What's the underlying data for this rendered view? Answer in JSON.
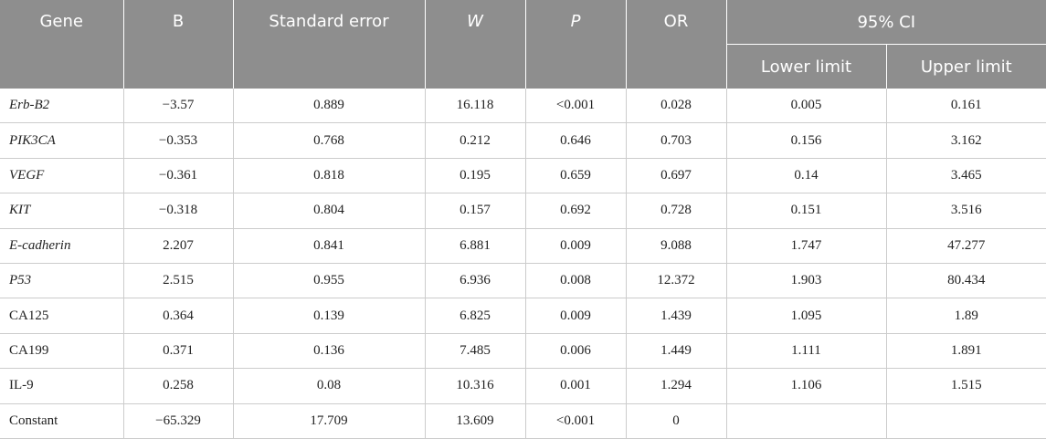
{
  "table": {
    "header": {
      "columns": [
        "Gene",
        "B",
        "Standard error",
        "W",
        "P",
        "OR"
      ],
      "group": "95% CI",
      "subcolumns": [
        "Lower limit",
        "Upper limit"
      ]
    },
    "rows": [
      {
        "gene": "Erb-B2",
        "italic": true,
        "values": [
          "−3.57",
          "0.889",
          "16.118",
          "<0.001",
          "0.028",
          "0.005",
          "0.161"
        ]
      },
      {
        "gene": "PIK3CA",
        "italic": true,
        "values": [
          "−0.353",
          "0.768",
          "0.212",
          "0.646",
          "0.703",
          "0.156",
          "3.162"
        ]
      },
      {
        "gene": "VEGF",
        "italic": true,
        "values": [
          "−0.361",
          "0.818",
          "0.195",
          "0.659",
          "0.697",
          "0.14",
          "3.465"
        ]
      },
      {
        "gene": "KIT",
        "italic": true,
        "values": [
          "−0.318",
          "0.804",
          "0.157",
          "0.692",
          "0.728",
          "0.151",
          "3.516"
        ]
      },
      {
        "gene": "E-cadherin",
        "italic": true,
        "values": [
          "2.207",
          "0.841",
          "6.881",
          "0.009",
          "9.088",
          "1.747",
          "47.277"
        ]
      },
      {
        "gene": "P53",
        "italic": true,
        "values": [
          "2.515",
          "0.955",
          "6.936",
          "0.008",
          "12.372",
          "1.903",
          "80.434"
        ]
      },
      {
        "gene": "CA125",
        "italic": false,
        "values": [
          "0.364",
          "0.139",
          "6.825",
          "0.009",
          "1.439",
          "1.095",
          "1.89"
        ]
      },
      {
        "gene": "CA199",
        "italic": false,
        "values": [
          "0.371",
          "0.136",
          "7.485",
          "0.006",
          "1.449",
          "1.111",
          "1.891"
        ]
      },
      {
        "gene": "IL-9",
        "italic": false,
        "values": [
          "0.258",
          "0.08",
          "10.316",
          "0.001",
          "1.294",
          "1.106",
          "1.515"
        ]
      },
      {
        "gene": "Constant",
        "italic": false,
        "values": [
          "−65.329",
          "17.709",
          "13.609",
          "<0.001",
          "0"
        ]
      }
    ]
  }
}
